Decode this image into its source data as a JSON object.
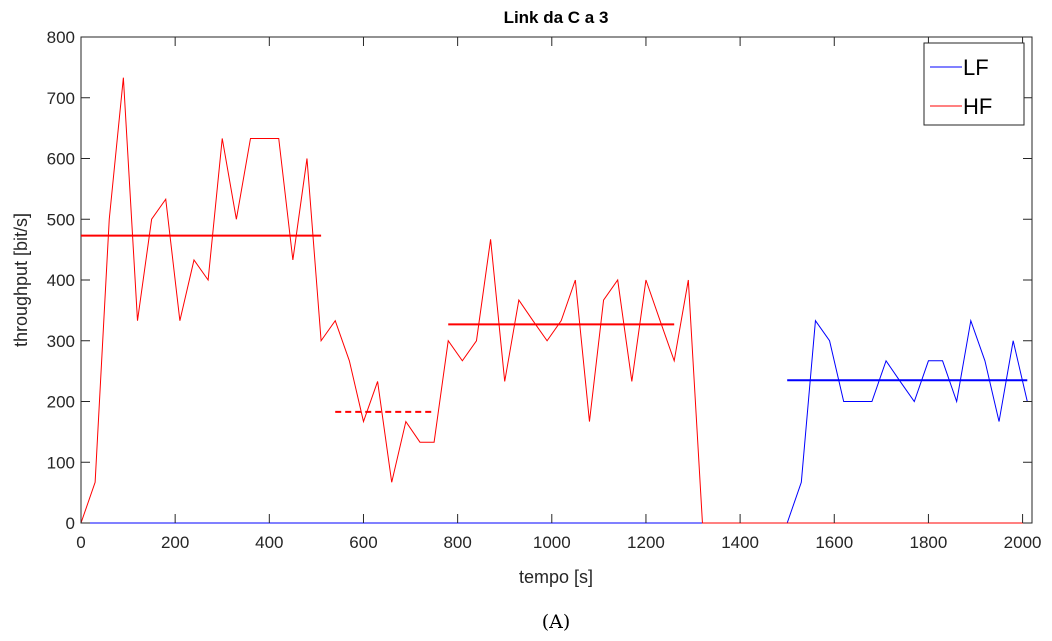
{
  "chart_data": {
    "type": "line",
    "title": "Link da C a 3",
    "xlabel": "tempo [s]",
    "ylabel": "throughput [bit/s]",
    "xlim": [
      0,
      2020
    ],
    "ylim": [
      0,
      800
    ],
    "xticks": [
      0,
      200,
      400,
      600,
      800,
      1000,
      1200,
      1400,
      1600,
      1800,
      2000
    ],
    "yticks": [
      0,
      100,
      200,
      300,
      400,
      500,
      600,
      700,
      800
    ],
    "grid": false,
    "legend_position": "top-right",
    "series": [
      {
        "name": "LF",
        "color": "#0000ff",
        "x": [
          0,
          1500,
          1530,
          1560,
          1590,
          1620,
          1650,
          1680,
          1710,
          1740,
          1770,
          1800,
          1830,
          1860,
          1890,
          1920,
          1950,
          1980,
          2010
        ],
        "y": [
          0,
          0,
          67,
          333,
          300,
          200,
          200,
          200,
          267,
          233,
          200,
          267,
          267,
          200,
          333,
          267,
          167,
          300,
          200
        ]
      },
      {
        "name": "HF",
        "color": "#ff0000",
        "x": [
          0,
          30,
          60,
          90,
          120,
          150,
          180,
          210,
          240,
          270,
          300,
          330,
          360,
          390,
          420,
          450,
          480,
          510,
          540,
          570,
          600,
          630,
          660,
          690,
          720,
          750,
          780,
          810,
          840,
          870,
          900,
          930,
          960,
          990,
          1020,
          1050,
          1080,
          1110,
          1140,
          1170,
          1200,
          1230,
          1260,
          1290,
          1320,
          2020
        ],
        "y": [
          0,
          67,
          500,
          733,
          333,
          500,
          533,
          333,
          433,
          400,
          633,
          500,
          633,
          633,
          633,
          433,
          600,
          300,
          333,
          267,
          167,
          233,
          67,
          167,
          133,
          133,
          300,
          267,
          300,
          467,
          233,
          367,
          333,
          300,
          333,
          400,
          167,
          367,
          400,
          233,
          400,
          333,
          267,
          400,
          0,
          0
        ]
      }
    ],
    "mean_lines": [
      {
        "color": "#ff0000",
        "style": "solid",
        "x": [
          0,
          510
        ],
        "y": 473
      },
      {
        "color": "#ff0000",
        "style": "dashed",
        "x": [
          540,
          750
        ],
        "y": 183
      },
      {
        "color": "#ff0000",
        "style": "solid",
        "x": [
          780,
          1260
        ],
        "y": 327
      },
      {
        "color": "#0000ff",
        "style": "solid",
        "x": [
          1500,
          2010
        ],
        "y": 235
      }
    ]
  },
  "caption": "(A)"
}
